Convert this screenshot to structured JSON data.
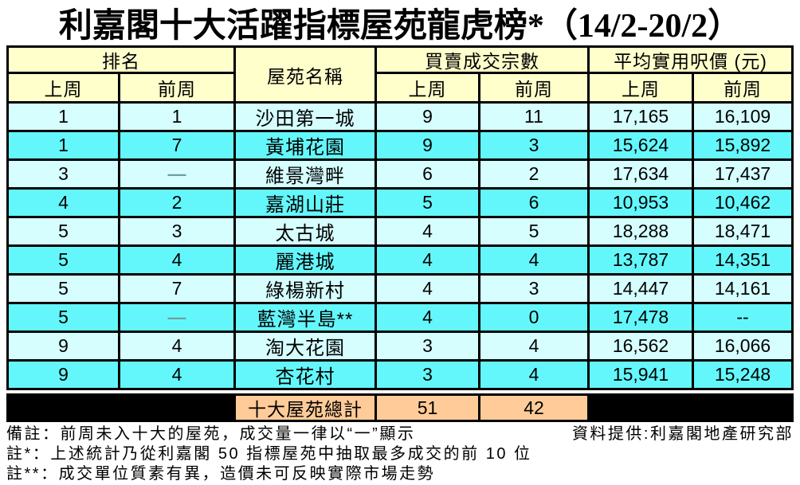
{
  "title": "利嘉閣十大活躍指標屋苑龍虎榜*（14/2-20/2）",
  "table": {
    "headers": {
      "rank_group": "排名",
      "estate_name": "屋苑名稱",
      "transactions_group": "買賣成交宗數",
      "price_group": "平均實用呎價 (元)",
      "last_week": "上周",
      "prev_week": "前周"
    },
    "total": {
      "label": "十大屋苑總計",
      "txn_last_week": "51",
      "txn_prev_week": "42"
    }
  },
  "footnotes": {
    "note1_left": "備註：前周未入十大的屋苑，成交量一律以“一”顯示",
    "note1_right": "資料提供:利嘉閣地產研究部",
    "note2": "註*：上述統計乃從利嘉閣 50 指標屋苑中抽取最多成交的前 10 位",
    "note3": "註**：成交單位質素有異，造價未可反映實際市場走勢"
  },
  "colors": {
    "header_bg": "#FFFFCC",
    "row_light": "#D6FEFF",
    "row_bright": "#63F7FB",
    "total_bg": "#FFCC99",
    "border": "#000000",
    "dash": "#6F9FA2"
  },
  "chart_data": {
    "type": "table",
    "title": "利嘉閣十大活躍指標屋苑龍虎榜*（14/2-20/2）",
    "column_groups": [
      "排名",
      "屋苑名稱",
      "買賣成交宗數",
      "平均實用呎價 (元)"
    ],
    "columns": [
      "排名-上周",
      "排名-前周",
      "屋苑名稱",
      "買賣成交宗數-上周",
      "買賣成交宗數-前周",
      "平均實用呎價(元)-上周",
      "平均實用呎價(元)-前周"
    ],
    "rows": [
      [
        "1",
        "1",
        "沙田第一城",
        "9",
        "11",
        "17,165",
        "16,109"
      ],
      [
        "1",
        "7",
        "黃埔花園",
        "9",
        "3",
        "15,624",
        "15,892"
      ],
      [
        "3",
        "—",
        "維景灣畔",
        "6",
        "2",
        "17,634",
        "17,437"
      ],
      [
        "4",
        "2",
        "嘉湖山莊",
        "5",
        "6",
        "10,953",
        "10,462"
      ],
      [
        "5",
        "3",
        "太古城",
        "4",
        "5",
        "18,288",
        "18,471"
      ],
      [
        "5",
        "4",
        "麗港城",
        "4",
        "4",
        "13,787",
        "14,351"
      ],
      [
        "5",
        "7",
        "綠楊新村",
        "4",
        "3",
        "14,447",
        "14,161"
      ],
      [
        "5",
        "—",
        "藍灣半島**",
        "4",
        "0",
        "17,478",
        "--"
      ],
      [
        "9",
        "4",
        "淘大花園",
        "3",
        "4",
        "16,562",
        "16,066"
      ],
      [
        "9",
        "4",
        "杏花村",
        "3",
        "4",
        "15,941",
        "15,248"
      ]
    ],
    "total_row": [
      "",
      "",
      "十大屋苑總計",
      "51",
      "42",
      "",
      ""
    ]
  }
}
